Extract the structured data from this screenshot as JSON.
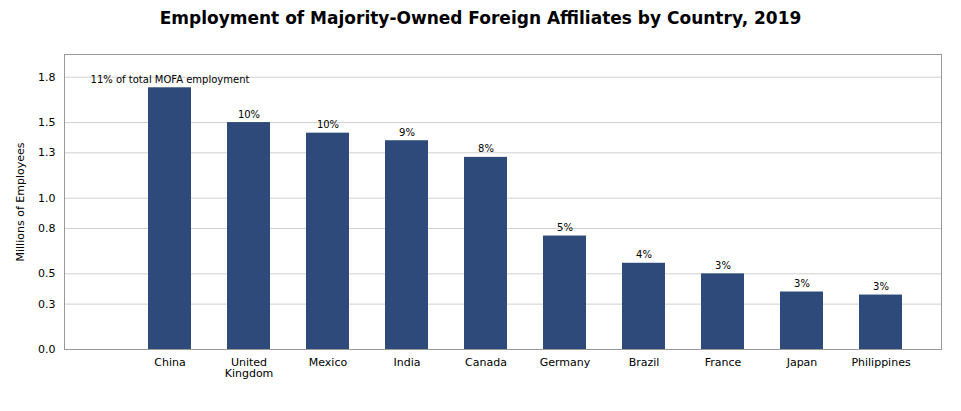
{
  "chart_data": {
    "type": "bar",
    "title": "Employment of Majority-Owned Foreign Affiliates by Country, 2019",
    "ylabel": "Millions of Employees",
    "categories": [
      "China",
      "United\nKingdom",
      "Mexico",
      "India",
      "Canada",
      "Germany",
      "Brazil",
      "France",
      "Japan",
      "Philippines"
    ],
    "values": [
      1.73,
      1.5,
      1.43,
      1.38,
      1.27,
      0.75,
      0.57,
      0.5,
      0.38,
      0.36
    ],
    "annotations": [
      "11% of total MOFA employment",
      "10%",
      "10%",
      "9%",
      "8%",
      "5%",
      "4%",
      "3%",
      "3%",
      "3%"
    ],
    "color": "#2E4A7A",
    "ylim": [
      0,
      1.95
    ],
    "yticks": [
      {
        "value": 0,
        "label": "0.0"
      },
      0.3,
      0.5,
      0.8,
      {
        "value": 1,
        "label": "1.0"
      },
      1.3,
      1.5,
      1.8
    ],
    "grid": true
  }
}
